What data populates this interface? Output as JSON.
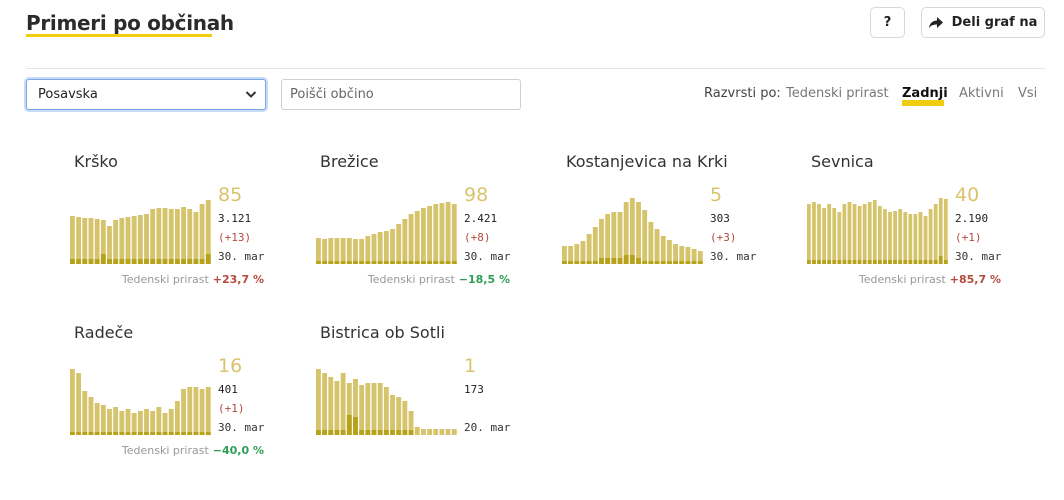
{
  "header": {
    "title": "Primeri po občinah",
    "help_label": "?",
    "share_label": "Deli graf na"
  },
  "filters": {
    "region_selected": "Posavska",
    "search_placeholder": "Poišči občino"
  },
  "sort": {
    "label": "Razvrsti po:",
    "options": [
      "Tedenski prirast",
      "Zadnji",
      "Aktivni",
      "Vsi"
    ],
    "active": "Zadnji"
  },
  "colors": {
    "accent": "#f0cd11",
    "bar_light": "#d6c46c",
    "bar_dark": "#b7a21b",
    "growth_up": "#b54a3e",
    "growth_down": "#2e9e55"
  },
  "growth_label": "Tedenski prirast",
  "cards": [
    {
      "name": "Krško",
      "last": "85",
      "total": "3.121",
      "delta": "(+13)",
      "date": "30. mar",
      "growth": "+23,7 %",
      "growth_dir": "up",
      "bars": [
        48,
        47,
        46,
        46,
        45,
        44,
        38,
        44,
        46,
        47,
        48,
        49,
        50,
        55,
        56,
        56,
        55,
        55,
        57,
        55,
        52,
        60,
        64
      ],
      "dark": [
        5,
        5,
        5,
        5,
        5,
        10,
        5,
        5,
        5,
        5,
        5,
        5,
        5,
        5,
        5,
        5,
        5,
        5,
        5,
        5,
        5,
        5,
        10
      ]
    },
    {
      "name": "Brežice",
      "last": "98",
      "total": "2.421",
      "delta": "(+8)",
      "date": "30. mar",
      "growth": "−18,5 %",
      "growth_dir": "down",
      "bars": [
        26,
        25,
        26,
        26,
        26,
        26,
        25,
        25,
        28,
        30,
        32,
        33,
        35,
        40,
        45,
        50,
        53,
        56,
        58,
        60,
        61,
        62,
        60
      ],
      "dark": [
        3,
        3,
        3,
        3,
        3,
        3,
        3,
        3,
        3,
        3,
        3,
        3,
        3,
        3,
        3,
        3,
        3,
        3,
        3,
        3,
        3,
        3,
        3
      ]
    },
    {
      "name": "Kostanjevica na Krki",
      "last": "5",
      "total": "303",
      "delta": "(+3)",
      "date": "30. mar",
      "growth": "",
      "growth_dir": "",
      "bars": [
        18,
        18,
        20,
        23,
        30,
        37,
        45,
        50,
        52,
        52,
        62,
        66,
        62,
        54,
        42,
        35,
        28,
        24,
        20,
        18,
        17,
        15,
        13
      ],
      "dark": [
        3,
        3,
        3,
        3,
        3,
        3,
        6,
        6,
        6,
        6,
        9,
        9,
        6,
        3,
        3,
        3,
        3,
        3,
        3,
        3,
        3,
        3,
        3
      ]
    },
    {
      "name": "Sevnica",
      "last": "40",
      "total": "2.190",
      "delta": "(+1)",
      "date": "30. mar",
      "growth": "+85,7 %",
      "growth_dir": "up",
      "bars": [
        60,
        62,
        60,
        56,
        60,
        56,
        52,
        60,
        62,
        60,
        58,
        60,
        62,
        64,
        58,
        55,
        52,
        53,
        55,
        52,
        50,
        50,
        52,
        48,
        55,
        60,
        66,
        65
      ],
      "dark": [
        4,
        4,
        4,
        4,
        4,
        4,
        4,
        4,
        4,
        4,
        4,
        4,
        4,
        4,
        4,
        4,
        4,
        4,
        4,
        4,
        4,
        4,
        4,
        4,
        4,
        4,
        8,
        4
      ]
    },
    {
      "name": "Radeče",
      "last": "16",
      "total": "401",
      "delta": "(+1)",
      "date": "30. mar",
      "growth": "−40,0 %",
      "growth_dir": "down",
      "bars": [
        66,
        62,
        44,
        38,
        32,
        30,
        26,
        28,
        24,
        26,
        22,
        24,
        26,
        24,
        28,
        22,
        26,
        34,
        46,
        48,
        48,
        46,
        48
      ],
      "dark": [
        3,
        3,
        3,
        3,
        3,
        3,
        3,
        3,
        3,
        3,
        3,
        3,
        3,
        3,
        3,
        3,
        3,
        3,
        3,
        3,
        3,
        3,
        3
      ]
    },
    {
      "name": "Bistrica ob Sotli",
      "last": "1",
      "total": "173",
      "delta": "",
      "date": "20. mar",
      "growth": "",
      "growth_dir": "",
      "bars": [
        66,
        62,
        58,
        54,
        62,
        52,
        56,
        50,
        52,
        52,
        52,
        48,
        40,
        38,
        34,
        24,
        8,
        6,
        6,
        6,
        6,
        6,
        6
      ],
      "dark": [
        5,
        5,
        5,
        5,
        5,
        20,
        18,
        5,
        5,
        5,
        5,
        5,
        5,
        5,
        5,
        5,
        0,
        0,
        0,
        0,
        0,
        0,
        0
      ]
    }
  ]
}
